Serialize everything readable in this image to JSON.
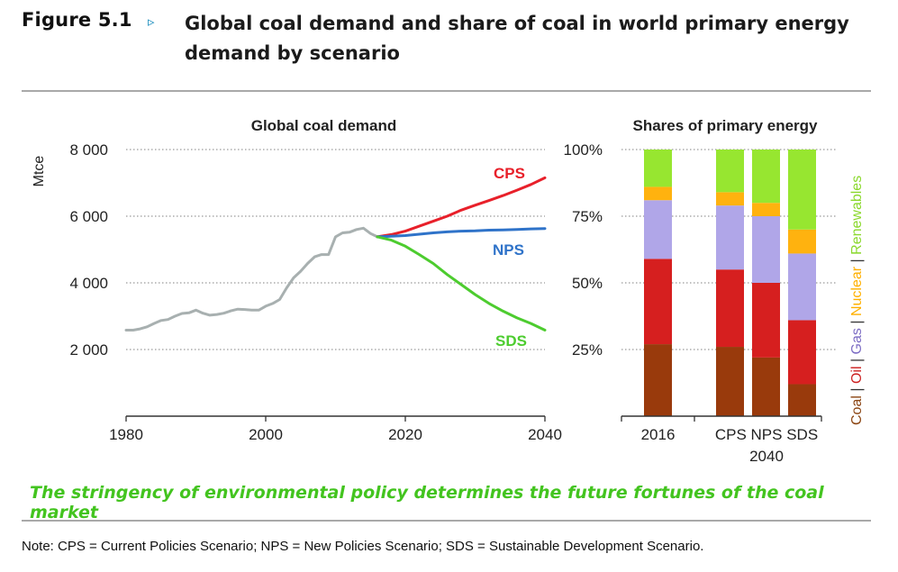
{
  "header": {
    "figure_label": "Figure 5.1",
    "arrow": "▹",
    "title": "Global coal demand and share of coal in world primary energy demand by scenario"
  },
  "caption": "The stringency of environmental policy determines the future fortunes of the coal market",
  "note": "Note: CPS = Current Policies Scenario; NPS = New Policies Scenario; SDS = Sustainable Development Scenario.",
  "chart_data": [
    {
      "type": "line",
      "title": "Global coal demand",
      "ylabel": "Mtce",
      "xlabel": "",
      "xlim": [
        1980,
        2040
      ],
      "ylim": [
        0,
        8000
      ],
      "x_ticks": [
        1980,
        2000,
        2020,
        2040
      ],
      "x_tick_labels": [
        "1980",
        "2000",
        "2020",
        "2040"
      ],
      "y_ticks": [
        2000,
        4000,
        6000,
        8000
      ],
      "y_tick_labels": [
        "2 000",
        "4 000",
        "6 000",
        "8 000"
      ],
      "grid": "horizontal dotted",
      "series": [
        {
          "name": "",
          "color": "#a8b0b0",
          "x": [
            1980,
            1981,
            1982,
            1983,
            1984,
            1985,
            1986,
            1987,
            1988,
            1989,
            1990,
            1991,
            1992,
            1993,
            1994,
            1995,
            1996,
            1997,
            1998,
            1999,
            2000,
            2001,
            2002,
            2003,
            2004,
            2005,
            2006,
            2007,
            2008,
            2009,
            2010,
            2011,
            2012,
            2013,
            2014,
            2015,
            2016
          ],
          "y": [
            2580,
            2580,
            2620,
            2680,
            2780,
            2870,
            2900,
            3000,
            3080,
            3100,
            3180,
            3090,
            3030,
            3050,
            3090,
            3160,
            3210,
            3200,
            3180,
            3180,
            3300,
            3380,
            3500,
            3850,
            4150,
            4350,
            4580,
            4780,
            4850,
            4850,
            5380,
            5500,
            5520,
            5600,
            5640,
            5480,
            5380
          ]
        },
        {
          "name": "CPS",
          "color": "#e8202a",
          "x": [
            2016,
            2018,
            2020,
            2022,
            2024,
            2026,
            2028,
            2030,
            2032,
            2034,
            2036,
            2038,
            2040
          ],
          "y": [
            5380,
            5450,
            5550,
            5700,
            5850,
            6000,
            6180,
            6330,
            6470,
            6620,
            6780,
            6950,
            7150
          ]
        },
        {
          "name": "NPS",
          "color": "#2f73c9",
          "x": [
            2016,
            2018,
            2020,
            2022,
            2024,
            2026,
            2028,
            2030,
            2032,
            2034,
            2036,
            2038,
            2040
          ],
          "y": [
            5380,
            5400,
            5420,
            5460,
            5500,
            5530,
            5550,
            5560,
            5580,
            5590,
            5600,
            5620,
            5630
          ]
        },
        {
          "name": "SDS",
          "color": "#4dcc2f",
          "x": [
            2016,
            2018,
            2020,
            2022,
            2024,
            2026,
            2028,
            2030,
            2032,
            2034,
            2036,
            2038,
            2040
          ],
          "y": [
            5380,
            5280,
            5100,
            4850,
            4580,
            4250,
            3950,
            3650,
            3380,
            3150,
            2950,
            2780,
            2580
          ]
        }
      ]
    },
    {
      "type": "bar",
      "stacked": true,
      "title": "Shares of primary energy",
      "categories": [
        "2016",
        "CPS",
        "NPS",
        "SDS"
      ],
      "group_label": "2040",
      "ylim": [
        0,
        100
      ],
      "y_ticks": [
        25,
        50,
        75,
        100
      ],
      "y_tick_labels": [
        "25%",
        "50%",
        "75%",
        "100%"
      ],
      "grid": "horizontal dotted",
      "legend_position": "right, vertical",
      "legend": [
        {
          "label": "Coal",
          "color": "#8b4513"
        },
        {
          "label": "Oil",
          "color": "#cc1f1f"
        },
        {
          "label": "Gas",
          "color": "#7c6cc4"
        },
        {
          "label": "Nuclear",
          "color": "#ffb000"
        },
        {
          "label": "Renewables",
          "color": "#8ad82c"
        }
      ],
      "series": [
        {
          "name": "Coal",
          "color": "#993a0c",
          "values": [
            27,
            26,
            22,
            12
          ]
        },
        {
          "name": "Oil",
          "color": "#d61f1f",
          "values": [
            32,
            29,
            28,
            24
          ]
        },
        {
          "name": "Gas",
          "color": "#b0a6e8",
          "values": [
            22,
            24,
            25,
            25
          ]
        },
        {
          "name": "Nuclear",
          "color": "#ffb20f",
          "values": [
            5,
            5,
            5,
            9
          ]
        },
        {
          "name": "Renewables",
          "color": "#97e630",
          "values": [
            14,
            16,
            20,
            30
          ]
        }
      ]
    }
  ]
}
